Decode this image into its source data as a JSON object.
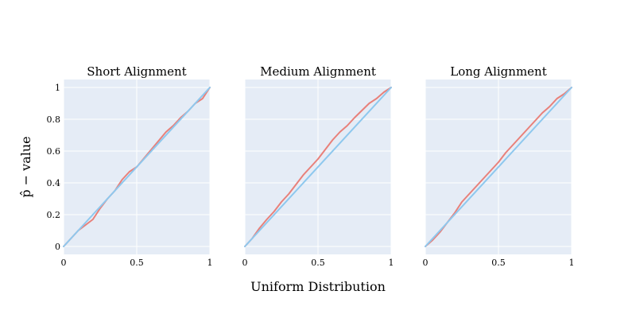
{
  "chart_data": {
    "type": "line",
    "xlabel": "Uniform Distribution",
    "ylabel": "p̂ − value",
    "xlim": [
      0,
      1
    ],
    "ylim": [
      -0.05,
      1.05
    ],
    "x_ticks": [
      0,
      0.5,
      1
    ],
    "x_tick_labels": [
      "0",
      "0.5",
      "1"
    ],
    "y_ticks": [
      0,
      0.2,
      0.4,
      0.6,
      0.8,
      1
    ],
    "y_tick_labels": [
      "0",
      "0.2",
      "0.4",
      "0.6",
      "0.8",
      "1"
    ],
    "grid": true,
    "shared_y": true,
    "colors": {
      "empirical": "#e8807a",
      "reference": "#8ec8ee",
      "plot_bg": "#e5ecf6",
      "grid": "#ffffff"
    },
    "panels": [
      {
        "title": "Short Alignment",
        "series": [
          {
            "role": "empirical",
            "x": [
              0,
              0.05,
              0.1,
              0.15,
              0.2,
              0.25,
              0.3,
              0.35,
              0.4,
              0.45,
              0.5,
              0.55,
              0.6,
              0.65,
              0.7,
              0.75,
              0.8,
              0.85,
              0.9,
              0.95,
              1
            ],
            "y": [
              0,
              0.05,
              0.1,
              0.135,
              0.17,
              0.24,
              0.3,
              0.35,
              0.42,
              0.47,
              0.5,
              0.555,
              0.61,
              0.665,
              0.72,
              0.76,
              0.81,
              0.85,
              0.9,
              0.93,
              1
            ]
          },
          {
            "role": "reference",
            "x": [
              0,
              1
            ],
            "y": [
              0,
              1
            ]
          }
        ]
      },
      {
        "title": "Medium Alignment",
        "series": [
          {
            "role": "empirical",
            "x": [
              0,
              0.05,
              0.1,
              0.15,
              0.2,
              0.25,
              0.3,
              0.35,
              0.4,
              0.45,
              0.5,
              0.55,
              0.6,
              0.65,
              0.7,
              0.75,
              0.8,
              0.85,
              0.9,
              0.95,
              1
            ],
            "y": [
              0,
              0.05,
              0.115,
              0.17,
              0.22,
              0.28,
              0.33,
              0.39,
              0.45,
              0.5,
              0.55,
              0.61,
              0.67,
              0.72,
              0.76,
              0.81,
              0.855,
              0.9,
              0.93,
              0.97,
              1
            ]
          },
          {
            "role": "reference",
            "x": [
              0,
              1
            ],
            "y": [
              0,
              1
            ]
          }
        ]
      },
      {
        "title": "Long Alignment",
        "series": [
          {
            "role": "empirical",
            "x": [
              0,
              0.05,
              0.1,
              0.15,
              0.2,
              0.25,
              0.3,
              0.35,
              0.4,
              0.45,
              0.5,
              0.55,
              0.6,
              0.65,
              0.7,
              0.75,
              0.8,
              0.85,
              0.9,
              0.95,
              1
            ],
            "y": [
              0,
              0.04,
              0.09,
              0.15,
              0.21,
              0.28,
              0.33,
              0.38,
              0.43,
              0.48,
              0.53,
              0.59,
              0.64,
              0.69,
              0.74,
              0.79,
              0.84,
              0.88,
              0.93,
              0.96,
              1
            ]
          },
          {
            "role": "reference",
            "x": [
              0,
              1
            ],
            "y": [
              0,
              1
            ]
          }
        ]
      }
    ]
  }
}
